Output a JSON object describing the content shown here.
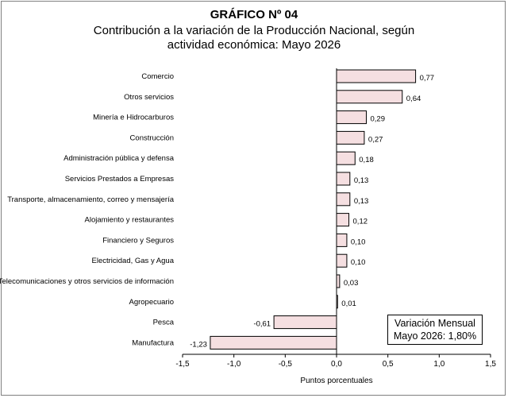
{
  "header": {
    "label": "GRÁFICO Nº 04",
    "title_line1": "Contribución a la variación de la Producción Nacional, según",
    "title_line2": "actividad económica: Mayo 2026"
  },
  "note": {
    "line1": "Variación Mensual",
    "line2": "Mayo 2026: 1,80%"
  },
  "colors": {
    "bar_fill": "#f5dfe1",
    "bar_stroke": "#000000"
  },
  "chart_data": {
    "type": "bar",
    "orientation": "horizontal",
    "title": "Contribución a la variación de la Producción Nacional, según actividad económica: Mayo 2026",
    "xlabel": "Puntos porcentuales",
    "ylabel": "",
    "xlim": [
      -1.5,
      1.5
    ],
    "x_ticks": [
      "-1,5",
      "-1,0",
      "-0,5",
      "0,0",
      "0,5",
      "1,0",
      "1,5"
    ],
    "grid": false,
    "categories": [
      "Comercio",
      "Otros servicios",
      "Minería e Hidrocarburos",
      "Construcción",
      "Administración pública y defensa",
      "Servicios Prestados a Empresas",
      "Transporte, almacenamiento, correo y mensajería",
      "Alojamiento y restaurantes",
      "Financiero y Seguros",
      "Electricidad, Gas y Agua",
      "Telecomunicaciones y otros servicios de información",
      "Agropecuario",
      "Pesca",
      "Manufactura"
    ],
    "values": [
      0.77,
      0.64,
      0.29,
      0.27,
      0.18,
      0.13,
      0.13,
      0.12,
      0.1,
      0.1,
      0.03,
      0.01,
      -0.61,
      -1.23
    ],
    "value_labels": [
      "0,77",
      "0,64",
      "0,29",
      "0,27",
      "0,18",
      "0,13",
      "0,13",
      "0,12",
      "0,10",
      "0,10",
      "0,03",
      "0,01",
      "-0,61",
      "-1,23"
    ]
  }
}
